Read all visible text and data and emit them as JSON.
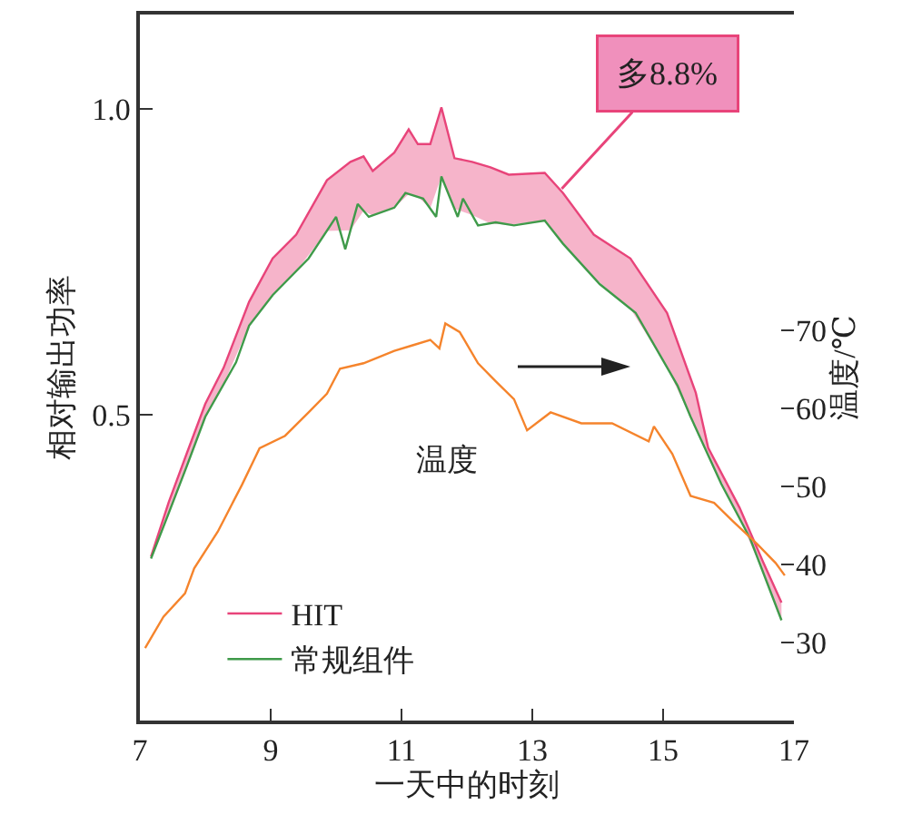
{
  "chart_data": {
    "type": "line",
    "xlabel": "一天中的时刻",
    "ylabel": "相对输出功率",
    "y2label": "温度/℃",
    "xlim": [
      7,
      17
    ],
    "xticks": [
      7,
      9,
      11,
      13,
      15,
      17
    ],
    "ylim": [
      0,
      1.155
    ],
    "yticks": [
      {
        "value": 0.5,
        "label": "0.5"
      },
      {
        "value": 1,
        "label": "1.0"
      }
    ],
    "y2lim": [
      20,
      110.5
    ],
    "y2ticks": [
      30,
      40,
      50,
      60,
      70
    ],
    "grid": false,
    "legend": "bottom left",
    "marker": "none",
    "line_style": "solid",
    "series": [
      {
        "name": "HIT",
        "color": "#e8447a",
        "x": [
          7.17,
          7.44,
          7.72,
          8.0,
          8.28,
          8.67,
          9.03,
          9.39,
          9.86,
          10.22,
          10.42,
          10.56,
          10.89,
          11.11,
          11.25,
          11.44,
          11.61,
          11.81,
          12.08,
          12.36,
          12.64,
          13.19,
          13.47,
          13.94,
          14.5,
          15.06,
          15.5,
          15.69,
          16.17,
          16.53,
          16.81
        ],
        "values": [
          0.268,
          0.357,
          0.438,
          0.518,
          0.577,
          0.685,
          0.756,
          0.795,
          0.884,
          0.914,
          0.923,
          0.899,
          0.929,
          0.967,
          0.943,
          0.943,
          1.003,
          0.92,
          0.914,
          0.905,
          0.893,
          0.896,
          0.863,
          0.795,
          0.756,
          0.667,
          0.536,
          0.446,
          0.348,
          0.259,
          0.193
        ],
        "upper": [
          0.268,
          0.357,
          0.438,
          0.518,
          0.577,
          0.685,
          0.756,
          0.795,
          0.884,
          0.914,
          0.923,
          0.899,
          0.929,
          0.967,
          0.943,
          0.943,
          1.003,
          0.92,
          0.914,
          0.905,
          0.893,
          0.896,
          0.863,
          0.795,
          0.756,
          0.667,
          0.536,
          0.446,
          0.348,
          0.259,
          0.193
        ],
        "lower": [
          0.265,
          0.339,
          0.417,
          0.497,
          0.55,
          0.646,
          0.696,
          0.735,
          0.801,
          0.802,
          0.834,
          0.826,
          0.839,
          0.861,
          0.857,
          0.838,
          0.89,
          0.837,
          0.827,
          0.813,
          0.811,
          0.818,
          0.78,
          0.725,
          0.674,
          0.578,
          0.478,
          0.434,
          0.33,
          0.242,
          0.164
        ]
      },
      {
        "name": "常规组件",
        "color": "#3f9a4a",
        "x": [
          7.17,
          7.44,
          7.72,
          8.0,
          8.47,
          8.67,
          9.03,
          9.58,
          10.0,
          10.14,
          10.33,
          10.5,
          10.89,
          11.06,
          11.33,
          11.53,
          11.61,
          11.86,
          11.94,
          12.17,
          12.44,
          12.72,
          13.19,
          13.47,
          14.03,
          14.58,
          15.22,
          15.42,
          15.89,
          16.33,
          16.81
        ],
        "values": [
          0.265,
          0.339,
          0.417,
          0.497,
          0.586,
          0.646,
          0.696,
          0.756,
          0.824,
          0.771,
          0.845,
          0.824,
          0.839,
          0.863,
          0.854,
          0.824,
          0.89,
          0.824,
          0.854,
          0.81,
          0.815,
          0.81,
          0.818,
          0.78,
          0.714,
          0.667,
          0.548,
          0.497,
          0.387,
          0.298,
          0.164
        ]
      },
      {
        "axis": "y2",
        "color": "#f5842c",
        "x": [
          7.08,
          7.36,
          7.69,
          7.83,
          8.19,
          8.56,
          8.83,
          9.22,
          9.58,
          9.86,
          10.06,
          10.42,
          10.89,
          11.17,
          11.44,
          11.58,
          11.67,
          11.89,
          12.17,
          12.44,
          12.72,
          12.92,
          13.28,
          13.75,
          14.22,
          14.78,
          14.86,
          15.14,
          15.42,
          15.78,
          16.06,
          16.44,
          16.72,
          16.86
        ],
        "values": [
          29.3,
          33.3,
          36.3,
          39.5,
          44.2,
          50.2,
          54.9,
          56.5,
          59.5,
          61.9,
          65.1,
          65.8,
          67.4,
          68.1,
          68.8,
          67.7,
          70.9,
          69.8,
          65.8,
          63.5,
          61.2,
          57.2,
          59.5,
          58.1,
          58.1,
          55.8,
          57.7,
          54.2,
          48.8,
          47.9,
          45.6,
          42.6,
          40.2,
          38.6
        ]
      }
    ],
    "annotations": [
      {
        "text": "多8.8%",
        "x": 13.45,
        "y": 0.87
      },
      "温度"
    ]
  }
}
